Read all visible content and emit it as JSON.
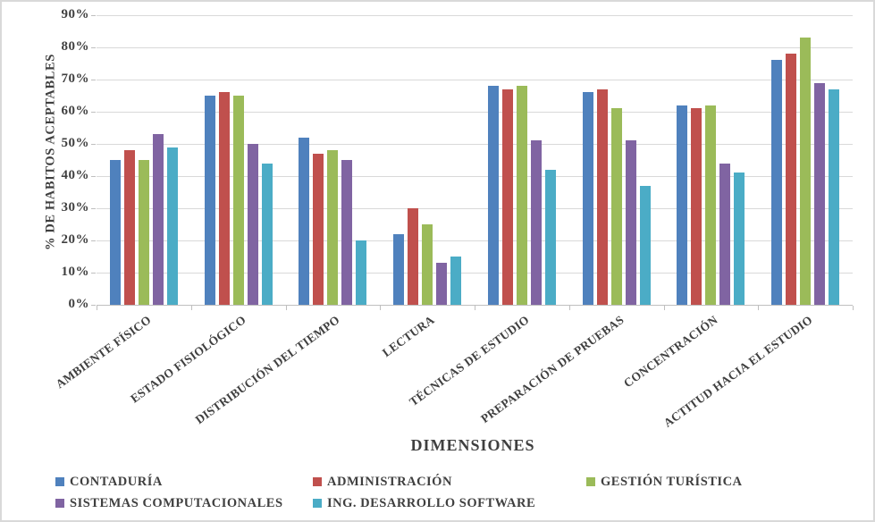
{
  "chart_data": {
    "type": "bar",
    "title": "",
    "ylabel": "% DE HABITOS ACEPTABLES",
    "xlabel": "DIMENSIONES",
    "ylim": [
      0,
      90
    ],
    "grid": true,
    "legend_position": "bottom",
    "yticks": [
      {
        "value": 0,
        "label": "0%"
      },
      {
        "value": 10,
        "label": "10%"
      },
      {
        "value": 20,
        "label": "20%"
      },
      {
        "value": 30,
        "label": "30%"
      },
      {
        "value": 40,
        "label": "40%"
      },
      {
        "value": 50,
        "label": "50%"
      },
      {
        "value": 60,
        "label": "60%"
      },
      {
        "value": 70,
        "label": "70%"
      },
      {
        "value": 80,
        "label": "80%"
      },
      {
        "value": 90,
        "label": "90%"
      }
    ],
    "categories": [
      "AMBIENTE FÍSICO",
      "ESTADO FISIOLÓGICO",
      "DISTRIBUCIÓN DEL TIEMPO",
      "LECTURA",
      "TÉCNICAS DE ESTUDIO",
      "PREPARACIÓN DE PRUEBAS",
      "CONCENTRACIÓN",
      "ACTITUD HACIA EL ESTUDIO"
    ],
    "series": [
      {
        "name": "CONTADURÍA",
        "color": "#4F81BD",
        "values": [
          45,
          65,
          52,
          22,
          68,
          66,
          62,
          76
        ]
      },
      {
        "name": "ADMINISTRACIÓN",
        "color": "#C0504D",
        "values": [
          48,
          66,
          47,
          30,
          67,
          67,
          61,
          78
        ]
      },
      {
        "name": "GESTIÓN TURÍSTICA",
        "color": "#9BBB59",
        "values": [
          45,
          65,
          48,
          25,
          68,
          61,
          62,
          83
        ]
      },
      {
        "name": "SISTEMAS COMPUTACIONALES",
        "color": "#8064A2",
        "values": [
          53,
          50,
          45,
          13,
          51,
          51,
          44,
          69
        ]
      },
      {
        "name": "ING. DESARROLLO SOFTWARE",
        "color": "#4BACC6",
        "values": [
          49,
          44,
          20,
          15,
          42,
          37,
          41,
          67
        ]
      }
    ]
  }
}
